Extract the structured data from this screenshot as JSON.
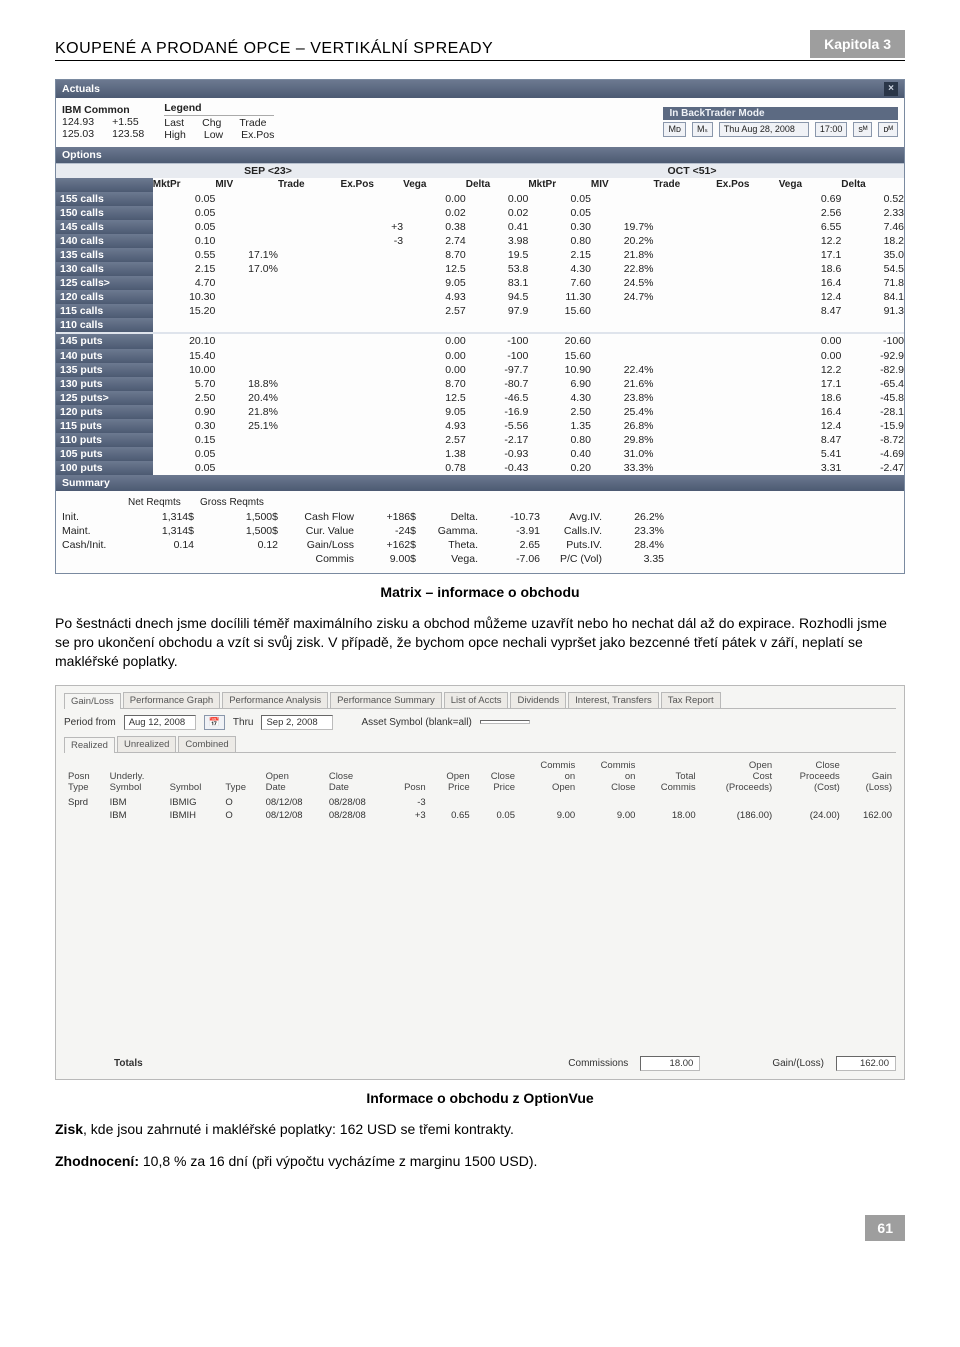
{
  "header": {
    "title": "KOUPENÉ A PRODANÉ OPCE – VERTIKÁLNÍ SPREADY",
    "chapter": "Kapitola 3"
  },
  "matrix": {
    "actuals_label": "Actuals",
    "ibm_title": "IBM Common",
    "ibm_r1": [
      "124.93",
      "+1.55"
    ],
    "ibm_r2": [
      "125.03",
      "123.58"
    ],
    "legend_title": "Legend",
    "legend_r1": [
      "Last",
      "Chg",
      "Trade"
    ],
    "legend_r2": [
      "High",
      "Low",
      "Ex.Pos"
    ],
    "bt_mode": "In BackTrader Mode",
    "bt_date": "Thu Aug 28, 2008",
    "bt_time": "17:00",
    "bt_btns": [
      "Mᴅ",
      "Mₛ",
      "sᴹ",
      "ᴅᴹ"
    ],
    "options_label": "Options",
    "month_left": "SEP <23>",
    "month_right": "OCT <51>",
    "col_headers": [
      "MktPr",
      "MIV",
      "Trade",
      "Ex.Pos",
      "Vega",
      "Delta",
      "MktPr",
      "MIV",
      "Trade",
      "Ex.Pos",
      "Vega",
      "Delta"
    ],
    "rows_calls": [
      {
        "label": "155 calls",
        "c": [
          "0.05",
          "",
          "",
          "",
          "0.00",
          "0.00",
          "0.05",
          "",
          "",
          "",
          "0.69",
          "0.52"
        ]
      },
      {
        "label": "150 calls",
        "c": [
          "0.05",
          "",
          "",
          "",
          "0.02",
          "0.02",
          "0.05",
          "",
          "",
          "",
          "2.56",
          "2.33"
        ]
      },
      {
        "label": "145 calls",
        "c": [
          "0.05",
          "",
          "",
          "+3",
          "0.38",
          "0.41",
          "0.30",
          "19.7%",
          "",
          "",
          "6.55",
          "7.46"
        ]
      },
      {
        "label": "140 calls",
        "c": [
          "0.10",
          "",
          "",
          "-3",
          "2.74",
          "3.98",
          "0.80",
          "20.2%",
          "",
          "",
          "12.2",
          "18.2"
        ]
      },
      {
        "label": "135 calls",
        "c": [
          "0.55",
          "17.1%",
          "",
          "",
          "8.70",
          "19.5",
          "2.15",
          "21.8%",
          "",
          "",
          "17.1",
          "35.0"
        ]
      },
      {
        "label": "130 calls",
        "c": [
          "2.15",
          "17.0%",
          "",
          "",
          "12.5",
          "53.8",
          "4.30",
          "22.8%",
          "",
          "",
          "18.6",
          "54.5"
        ]
      },
      {
        "label": "125 calls>",
        "c": [
          "4.70",
          "",
          "",
          "",
          "9.05",
          "83.1",
          "7.60",
          "24.5%",
          "",
          "",
          "16.4",
          "71.8"
        ]
      },
      {
        "label": "120 calls",
        "c": [
          "10.30",
          "",
          "",
          "",
          "4.93",
          "94.5",
          "11.30",
          "24.7%",
          "",
          "",
          "12.4",
          "84.1"
        ]
      },
      {
        "label": "115 calls",
        "c": [
          "15.20",
          "",
          "",
          "",
          "2.57",
          "97.9",
          "15.60",
          "",
          "",
          "",
          "8.47",
          "91.3"
        ]
      },
      {
        "label": "110 calls",
        "c": [
          "",
          "",
          "",
          "",
          "",
          "",
          "",
          "",
          "",
          "",
          "",
          ""
        ]
      }
    ],
    "rows_puts": [
      {
        "label": "145 puts",
        "c": [
          "20.10",
          "",
          "",
          "",
          "0.00",
          "-100",
          "20.60",
          "",
          "",
          "",
          "0.00",
          "-100"
        ]
      },
      {
        "label": "140 puts",
        "c": [
          "15.40",
          "",
          "",
          "",
          "0.00",
          "-100",
          "15.60",
          "",
          "",
          "",
          "0.00",
          "-92.9"
        ]
      },
      {
        "label": "135 puts",
        "c": [
          "10.00",
          "",
          "",
          "",
          "0.00",
          "-97.7",
          "10.90",
          "22.4%",
          "",
          "",
          "12.2",
          "-82.9"
        ]
      },
      {
        "label": "130 puts",
        "c": [
          "5.70",
          "18.8%",
          "",
          "",
          "8.70",
          "-80.7",
          "6.90",
          "21.6%",
          "",
          "",
          "17.1",
          "-65.4"
        ]
      },
      {
        "label": "125 puts>",
        "c": [
          "2.50",
          "20.4%",
          "",
          "",
          "12.5",
          "-46.5",
          "4.30",
          "23.8%",
          "",
          "",
          "18.6",
          "-45.8"
        ]
      },
      {
        "label": "120 puts",
        "c": [
          "0.90",
          "21.8%",
          "",
          "",
          "9.05",
          "-16.9",
          "2.50",
          "25.4%",
          "",
          "",
          "16.4",
          "-28.1"
        ]
      },
      {
        "label": "115 puts",
        "c": [
          "0.30",
          "25.1%",
          "",
          "",
          "4.93",
          "-5.56",
          "1.35",
          "26.8%",
          "",
          "",
          "12.4",
          "-15.9"
        ]
      },
      {
        "label": "110 puts",
        "c": [
          "0.15",
          "",
          "",
          "",
          "2.57",
          "-2.17",
          "0.80",
          "29.8%",
          "",
          "",
          "8.47",
          "-8.72"
        ]
      },
      {
        "label": "105 puts",
        "c": [
          "0.05",
          "",
          "",
          "",
          "1.38",
          "-0.93",
          "0.40",
          "31.0%",
          "",
          "",
          "5.41",
          "-4.69"
        ]
      },
      {
        "label": "100 puts",
        "c": [
          "0.05",
          "",
          "",
          "",
          "0.78",
          "-0.43",
          "0.20",
          "33.3%",
          "",
          "",
          "3.31",
          "-2.47"
        ]
      }
    ],
    "summary_label": "Summary",
    "summary": {
      "h": [
        "",
        "Net Reqmts",
        "Gross Reqmts",
        "",
        "",
        "",
        "",
        "",
        ""
      ],
      "rows": [
        [
          "Init.",
          "1,314$",
          "1,500$",
          "Cash Flow",
          "+186$",
          "Delta.",
          "-10.73",
          "Avg.IV.",
          "26.2%"
        ],
        [
          "Maint.",
          "1,314$",
          "1,500$",
          "Cur. Value",
          "-24$",
          "Gamma.",
          "-3.91",
          "Calls.IV.",
          "23.3%"
        ],
        [
          "Cash/Init.",
          "0.14",
          "0.12",
          "Gain/Loss",
          "+162$",
          "Theta.",
          "2.65",
          "Puts.IV.",
          "28.4%"
        ],
        [
          "",
          "",
          "",
          "Commis",
          "9.00$",
          "Vega.",
          "-7.06",
          "P/C (Vol)",
          "3.35"
        ]
      ]
    }
  },
  "caption1": "Matrix – informace o obchodu",
  "para1": "Po šestnácti dnech jsme docílili téměř maximálního zisku a obchod můžeme uzavřít nebo ho nechat dál až do expirace. Rozhodli jsme se pro ukončení obchodu a vzít si svůj zisk. V případě, že bychom opce nechali vypršet jako bezcenné třetí pátek v září, neplatí se makléřské poplatky.",
  "ov": {
    "tabs": [
      "Gain/Loss",
      "Performance Graph",
      "Performance Analysis",
      "Performance Summary",
      "List of Accts",
      "Dividends",
      "Interest, Transfers",
      "Tax Report"
    ],
    "period_from_lbl": "Period from",
    "period_from": "Aug 12, 2008",
    "thru_lbl": "Thru",
    "thru": "Sep 2, 2008",
    "asset_symbol_lbl": "Asset Symbol (blank=all)",
    "asset_symbol": "",
    "subtabs": [
      "Realized",
      "Unrealized",
      "Combined"
    ],
    "columns": [
      "Posn Type",
      "Underly. Symbol",
      "Symbol",
      "Type",
      "Open Date",
      "Close Date",
      "Posn",
      "Open Price",
      "Close Price",
      "Commis on Open",
      "Commis on Close",
      "Total Commis",
      "Open Cost (Proceeds)",
      "Close Proceeds (Cost)",
      "Gain (Loss)"
    ],
    "rows": [
      [
        "Sprd",
        "IBM",
        "IBMIG",
        "O",
        "08/12/08",
        "08/28/08",
        "-3",
        "",
        "",
        "",
        "",
        "",
        "",
        "",
        ""
      ],
      [
        "",
        "IBM",
        "IBMIH",
        "O",
        "08/12/08",
        "08/28/08",
        "+3",
        "0.65",
        "0.05",
        "9.00",
        "9.00",
        "18.00",
        "(186.00)",
        "(24.00)",
        "162.00"
      ]
    ],
    "totals_label": "Totals",
    "commis_label": "Commissions",
    "commis_val": "18.00",
    "gl_label": "Gain/(Loss)",
    "gl_val": "162.00"
  },
  "caption2": "Informace o obchodu z OptionVue",
  "para2_pre": "Zisk",
  "para2": ", kde jsou zahrnuté i makléřské poplatky: 162 USD se třemi kontrakty.",
  "para3_pre": "Zhodnocení:",
  "para3": " 10,8 % za 16 dní (při výpočtu vycházíme z marginu 1500 USD).",
  "page_number": "61"
}
